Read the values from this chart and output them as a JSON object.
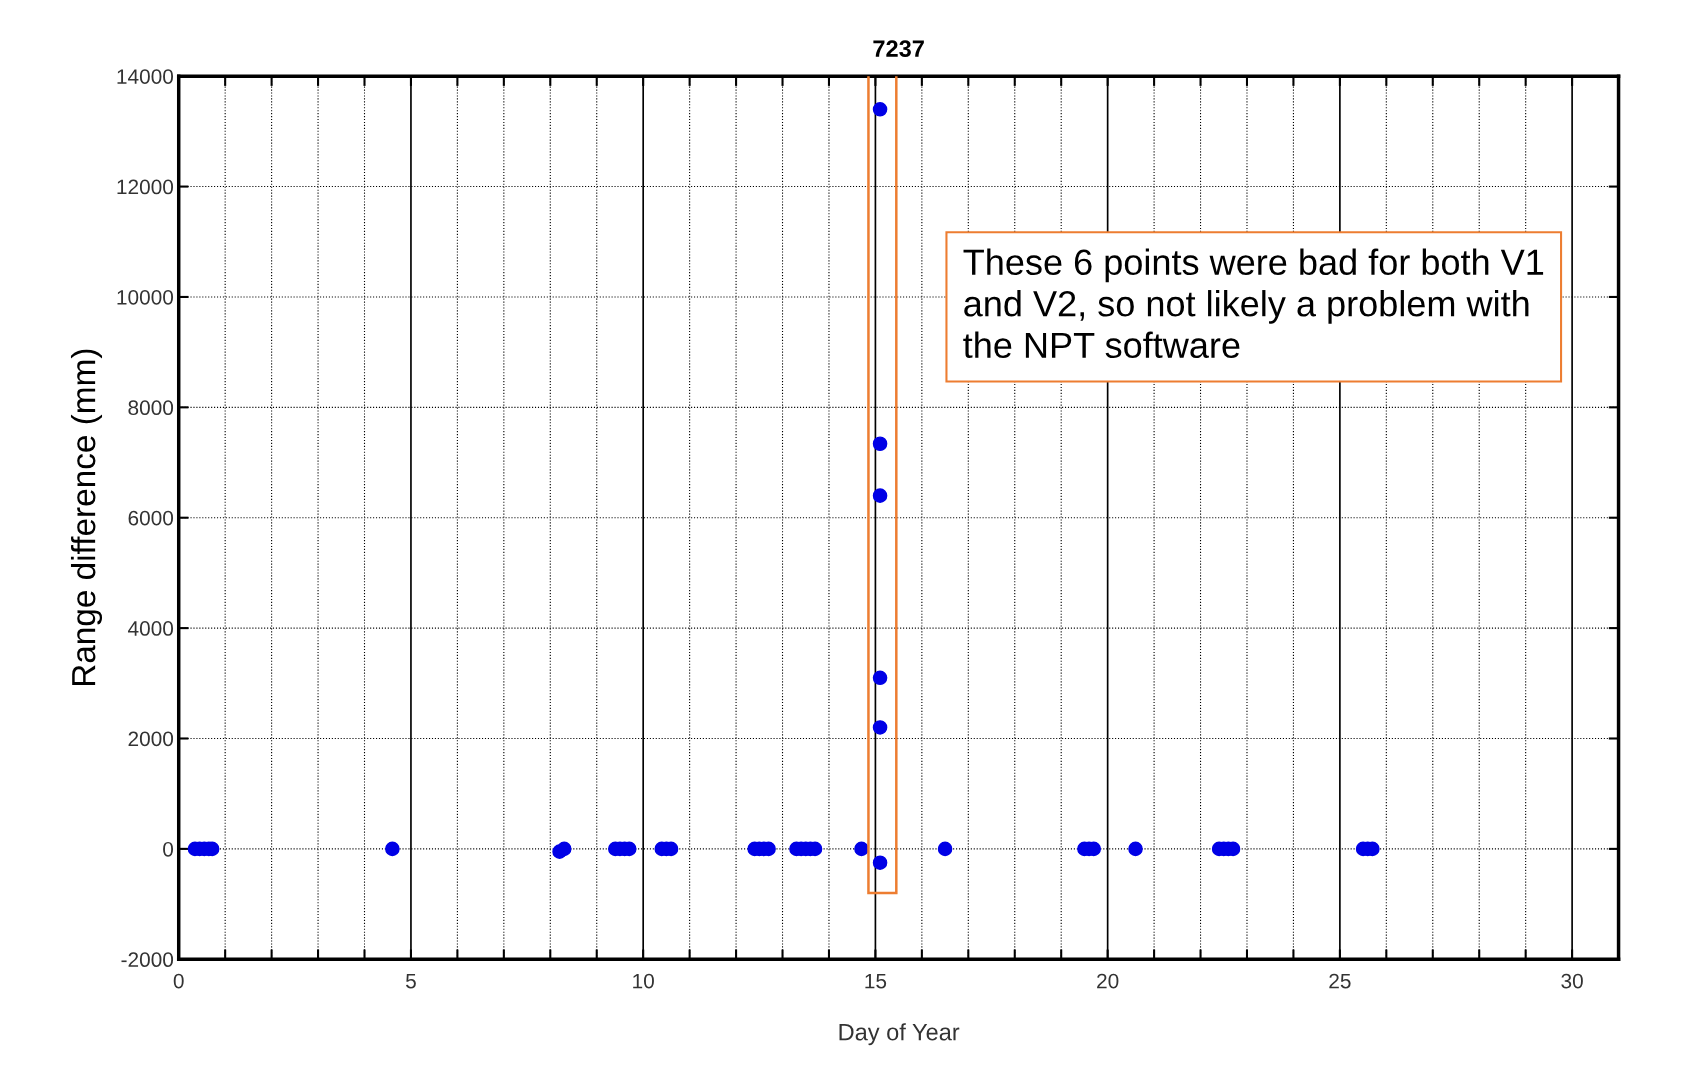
{
  "chart_data": {
    "type": "scatter",
    "title": "7237",
    "xlabel": "Day of Year",
    "ylabel": "Range difference (mm)",
    "xlim": [
      0,
      31
    ],
    "ylim": [
      -2000,
      14000
    ],
    "xticks": [
      0,
      {
        "value": 1,
        "label": null
      },
      {
        "value": 2,
        "label": null
      },
      {
        "value": 3,
        "label": null
      },
      {
        "value": 4,
        "label": null
      },
      5,
      {
        "value": 6,
        "label": null
      },
      {
        "value": 7,
        "label": null
      },
      {
        "value": 8,
        "label": null
      },
      {
        "value": 9,
        "label": null
      },
      10,
      {
        "value": 11,
        "label": null
      },
      {
        "value": 12,
        "label": null
      },
      {
        "value": 13,
        "label": null
      },
      {
        "value": 14,
        "label": null
      },
      15,
      {
        "value": 16,
        "label": null
      },
      {
        "value": 17,
        "label": null
      },
      {
        "value": 18,
        "label": null
      },
      {
        "value": 19,
        "label": null
      },
      20,
      {
        "value": 21,
        "label": null
      },
      {
        "value": 22,
        "label": null
      },
      {
        "value": 23,
        "label": null
      },
      {
        "value": 24,
        "label": null
      },
      25,
      {
        "value": 26,
        "label": null
      },
      {
        "value": 27,
        "label": null
      },
      {
        "value": 28,
        "label": null
      },
      {
        "value": 29,
        "label": null
      },
      30,
      {
        "value": 31,
        "label": null
      }
    ],
    "yticks": [
      -2000,
      0,
      2000,
      4000,
      6000,
      8000,
      10000,
      12000,
      14000
    ],
    "grid": true,
    "marker": "circle",
    "series": [
      {
        "color": "#0000e6",
        "x": [
          0.35,
          0.45,
          0.55,
          0.65,
          0.72,
          4.6,
          8.2,
          8.3,
          9.4,
          9.5,
          9.6,
          9.7,
          10.4,
          10.5,
          10.6,
          12.4,
          12.5,
          12.6,
          12.7,
          13.3,
          13.4,
          13.5,
          13.6,
          13.7,
          14.7,
          16.5,
          19.5,
          19.6,
          19.7,
          20.6,
          22.4,
          22.5,
          22.6,
          22.7,
          25.5,
          25.6,
          25.7
        ],
        "values": [
          0,
          0,
          0,
          0,
          0,
          0,
          -50,
          0,
          0,
          0,
          0,
          0,
          0,
          0,
          0,
          0,
          0,
          0,
          0,
          0,
          0,
          0,
          0,
          0,
          0,
          0,
          0,
          0,
          0,
          0,
          0,
          0,
          0,
          0,
          0,
          0,
          0
        ]
      },
      {
        "color": "#0000e6",
        "x": [
          15.1,
          15.1,
          15.1,
          15.1,
          15.1,
          15.1
        ],
        "values": [
          13400,
          7340,
          6400,
          3100,
          2200,
          -250
        ]
      }
    ],
    "annotations": [
      "These 6 points were bad for both V1\nand V2, so not likely a problem with\nthe NPT software"
    ]
  }
}
